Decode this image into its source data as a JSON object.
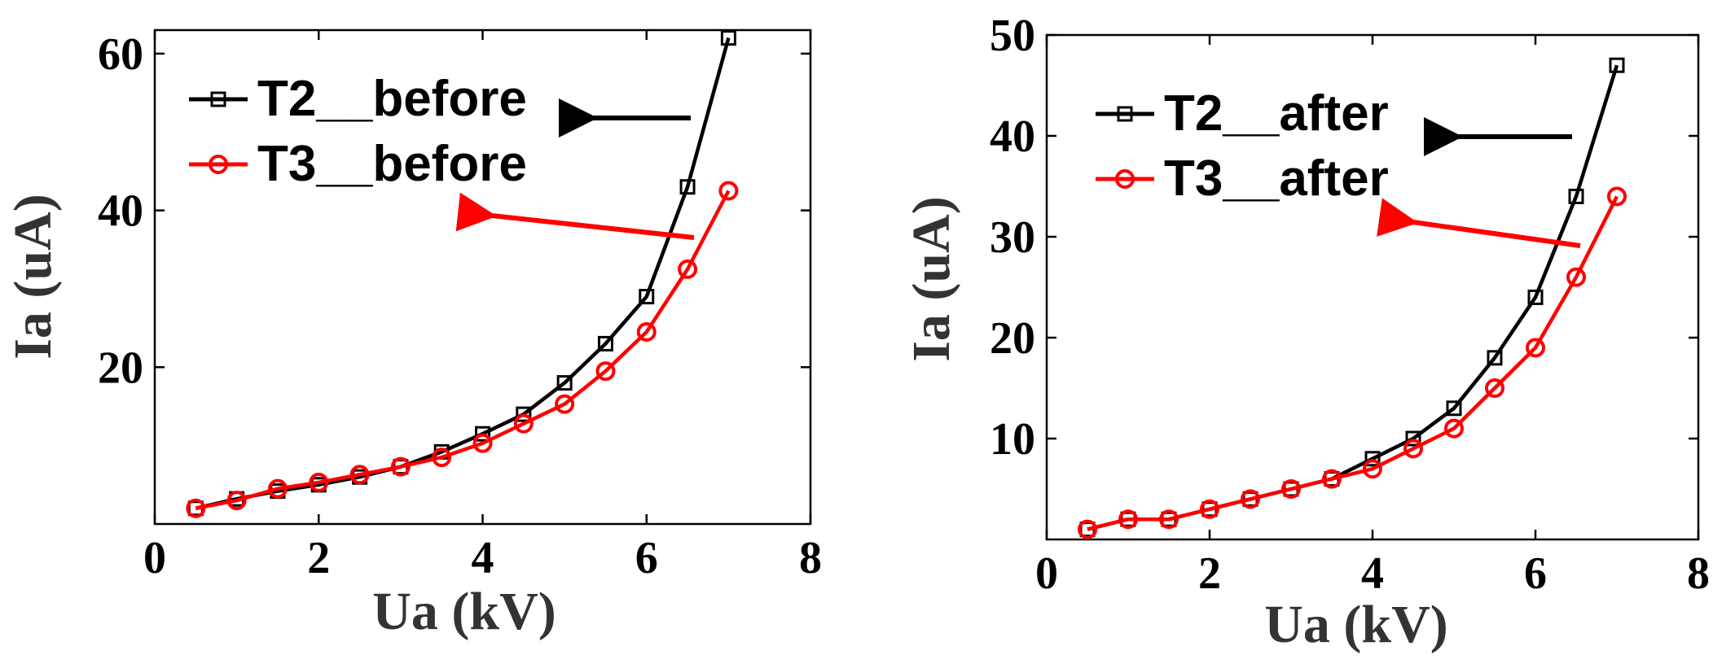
{
  "chart_data": [
    {
      "type": "line",
      "title": "",
      "xlabel": "Ua (kV)",
      "ylabel": "Ia (uA)",
      "xlim": [
        0,
        8
      ],
      "ylim": [
        0,
        63
      ],
      "xticks": [
        0,
        2,
        4,
        6,
        8
      ],
      "xtick_labels": [
        "0",
        "2",
        "4",
        "6",
        "8"
      ],
      "yticks": [
        20,
        40,
        60
      ],
      "ytick_labels": [
        "20",
        "40",
        "60"
      ],
      "x": [
        0.5,
        1,
        1.5,
        2,
        2.5,
        3,
        3.5,
        4,
        4.5,
        5,
        5.5,
        6,
        6.5,
        7
      ],
      "series": [
        {
          "name": "T2__before",
          "color": "#000000",
          "marker": "square",
          "values": [
            2,
            3.2,
            4.2,
            5,
            6,
            7.3,
            9.2,
            11.5,
            14,
            18,
            23,
            29,
            43,
            62
          ]
        },
        {
          "name": "T3__before",
          "color": "#ff0000",
          "marker": "circle",
          "values": [
            2,
            3,
            4.5,
            5.3,
            6.3,
            7.3,
            8.5,
            10.3,
            12.8,
            15.3,
            19.5,
            24.5,
            32.5,
            42.5
          ]
        }
      ],
      "legend_position": "top-left",
      "annotations": "arrows pointing from curves toward legend entries"
    },
    {
      "type": "line",
      "title": "",
      "xlabel": "Ua (kV)",
      "ylabel": "Ia (uA)",
      "xlim": [
        0,
        8
      ],
      "ylim": [
        0,
        50
      ],
      "xticks": [
        0,
        2,
        4,
        6,
        8
      ],
      "xtick_labels": [
        "0",
        "2",
        "4",
        "6",
        "8"
      ],
      "yticks": [
        10,
        20,
        30,
        40,
        50
      ],
      "ytick_labels": [
        "10",
        "20",
        "30",
        "40",
        "50"
      ],
      "x": [
        0.5,
        1,
        1.5,
        2,
        2.5,
        3,
        3.5,
        4,
        4.5,
        5,
        5.5,
        6,
        6.5,
        7
      ],
      "series": [
        {
          "name": "T2__after",
          "color": "#000000",
          "marker": "square",
          "values": [
            1,
            2,
            2,
            3,
            4,
            5,
            6,
            8,
            10,
            13,
            18,
            24,
            34,
            47
          ]
        },
        {
          "name": "T3__after",
          "color": "#ff0000",
          "marker": "circle",
          "values": [
            1,
            2,
            2,
            3,
            4,
            5,
            6,
            7,
            9,
            11,
            15,
            19,
            26,
            34
          ]
        }
      ],
      "legend_position": "top-left",
      "annotations": "arrows pointing from curves toward legend entries"
    }
  ]
}
